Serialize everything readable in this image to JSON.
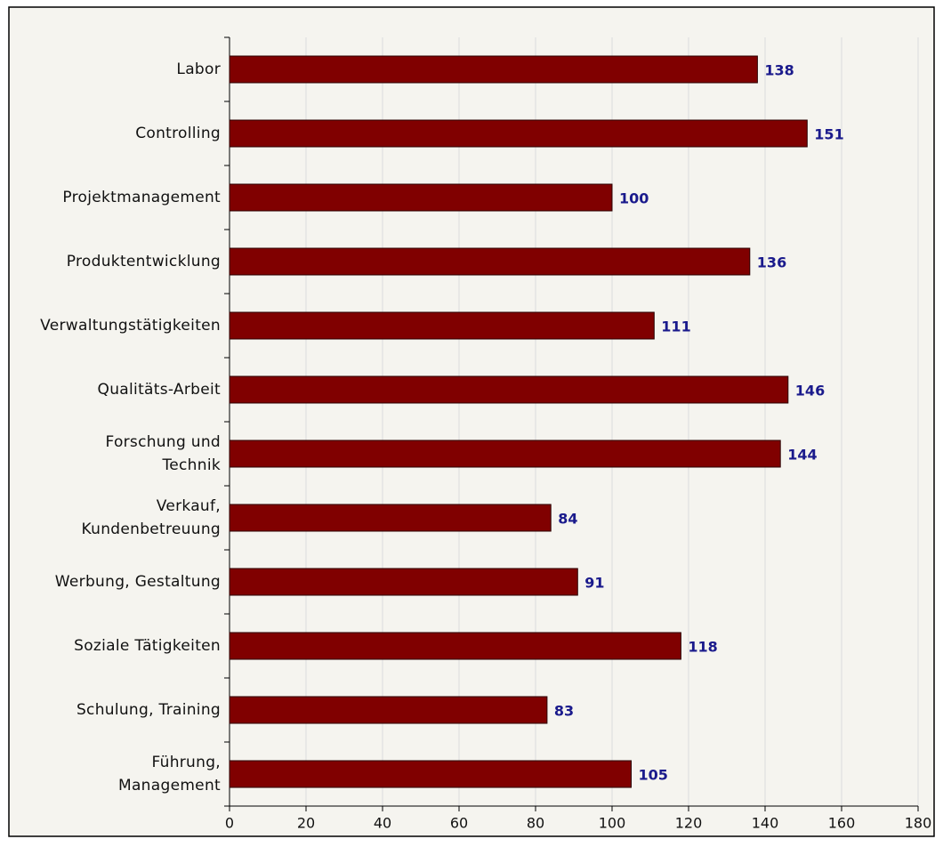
{
  "chart_data": {
    "type": "bar",
    "orientation": "horizontal",
    "categories": [
      "Labor",
      "Controlling",
      "Projektmanagement",
      "Produktentwicklung",
      "Verwaltungstätigkeiten",
      "Qualitäts-Arbeit",
      "Forschung und\nTechnik",
      "Verkauf,\nKundenbetreuung",
      "Werbung, Gestaltung",
      "Soziale Tätigkeiten",
      "Schulung, Training",
      "Führung,\nManagement"
    ],
    "values": [
      138,
      151,
      100,
      136,
      111,
      146,
      144,
      84,
      91,
      118,
      83,
      105
    ],
    "color": "#800000",
    "value_label_color": "#1a1a8c",
    "xlim": [
      0,
      180
    ],
    "xticks": [
      0,
      20,
      40,
      60,
      80,
      100,
      120,
      140,
      160,
      180
    ],
    "grid": true
  }
}
